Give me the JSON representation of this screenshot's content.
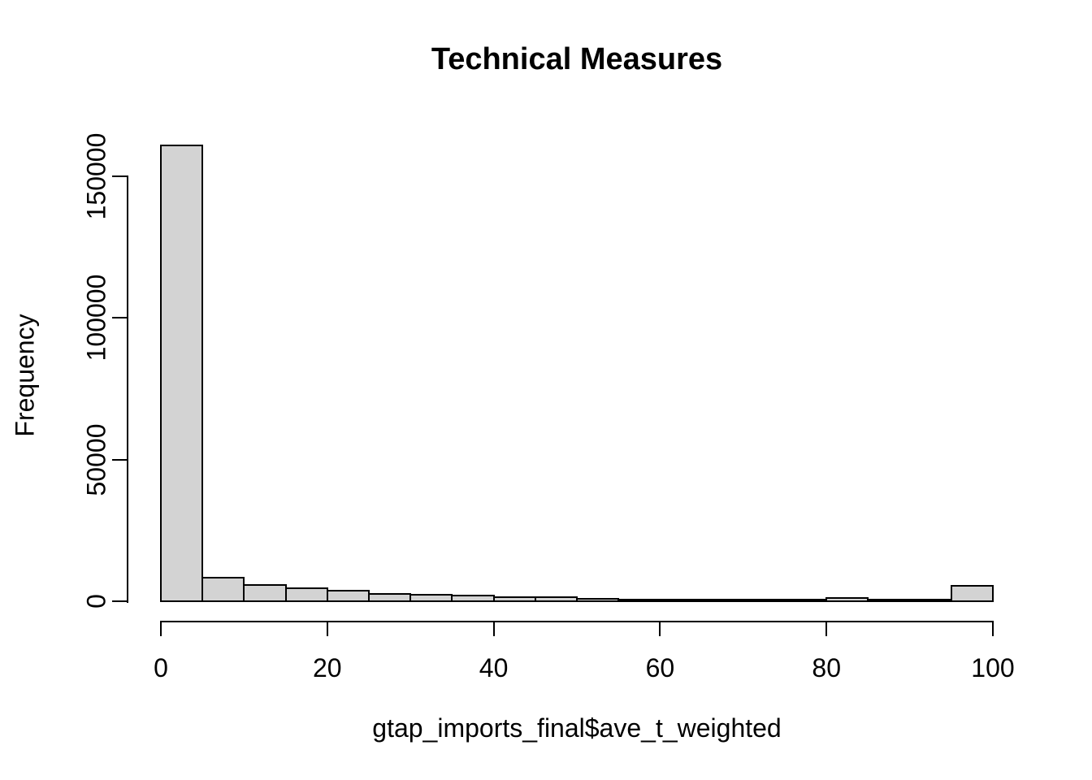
{
  "figure": {
    "title": "Technical Measures",
    "xlabel": "gtap_imports_final$ave_t_weighted",
    "ylabel": "Frequency"
  },
  "colors": {
    "background": "#ffffff",
    "bar_fill": "#d3d3d3",
    "bar_border": "#000000",
    "axis": "#000000",
    "text": "#000000"
  },
  "chart_data": {
    "type": "bar",
    "subtype": "histogram",
    "title": "Technical Measures",
    "xlabel": "gtap_imports_final$ave_t_weighted",
    "ylabel": "Frequency",
    "xlim": [
      0,
      100
    ],
    "ylim": [
      0,
      150000
    ],
    "x_ticks": [
      0,
      20,
      40,
      60,
      80,
      100
    ],
    "y_ticks": [
      0,
      50000,
      100000,
      150000
    ],
    "grid": false,
    "legend": false,
    "bin_width": 5,
    "bin_edges": [
      0,
      5,
      10,
      15,
      20,
      25,
      30,
      35,
      40,
      45,
      50,
      55,
      60,
      65,
      70,
      75,
      80,
      85,
      90,
      95,
      100
    ],
    "counts": [
      161000,
      8300,
      5700,
      4600,
      3700,
      2600,
      2300,
      2100,
      1400,
      1500,
      950,
      600,
      600,
      500,
      650,
      650,
      1250,
      570,
      570,
      5450
    ]
  }
}
